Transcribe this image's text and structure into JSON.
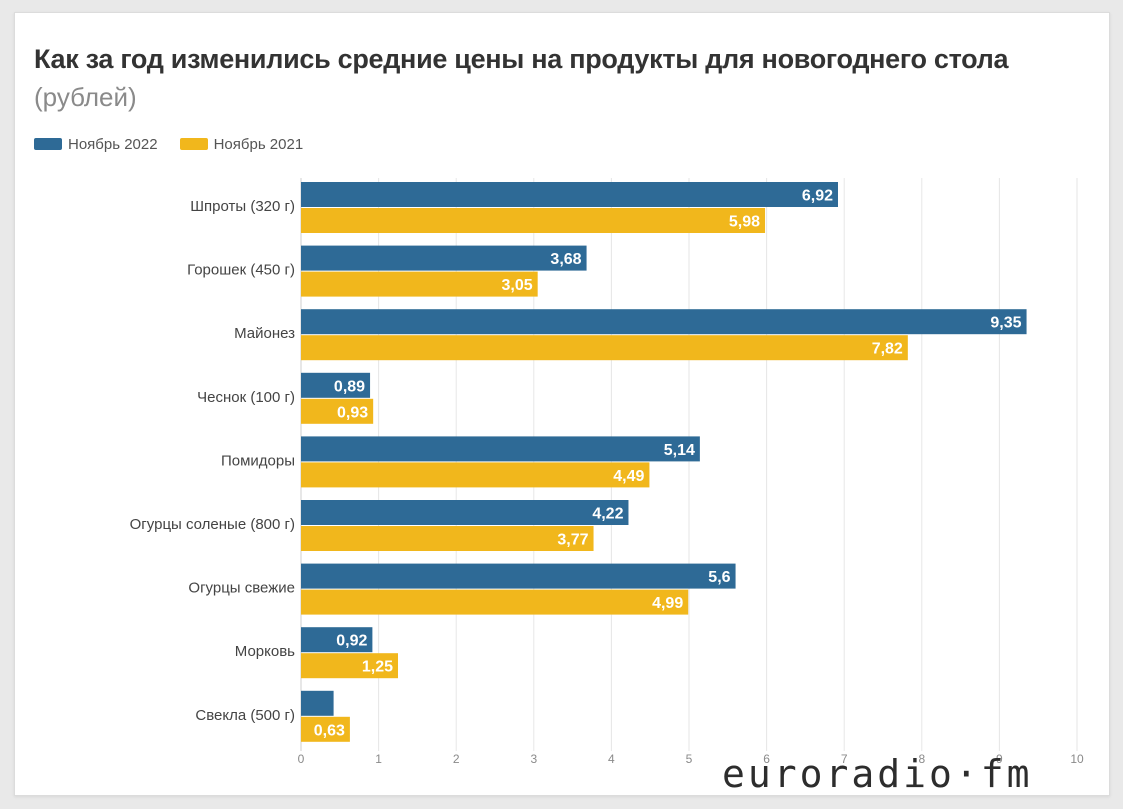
{
  "chart_data": {
    "type": "bar",
    "orientation": "horizontal",
    "title": "Как за год изменились средние цены на продукты для новогоднего стола",
    "subtitle": "(рублей)",
    "categories": [
      "Шпроты (320 г)",
      "Горошек (450 г)",
      "Майонез",
      "Чеснок (100 г)",
      "Помидоры",
      "Огурцы соленые (800 г)",
      "Огурцы свежие",
      "Морковь",
      "Свекла (500 г)"
    ],
    "series": [
      {
        "name": "Ноябрь 2022",
        "color": "#2e6a96",
        "values": [
          6.92,
          3.68,
          9.35,
          0.89,
          5.14,
          4.22,
          5.6,
          0.92,
          0.42
        ],
        "labels": [
          "6,92",
          "3,68",
          "9,35",
          "0,89",
          "5,14",
          "4,22",
          "5,6",
          "0,92",
          ""
        ]
      },
      {
        "name": "Ноябрь 2021",
        "color": "#f1b71c",
        "values": [
          5.98,
          3.05,
          7.82,
          0.93,
          4.49,
          3.77,
          4.99,
          1.25,
          0.63
        ],
        "labels": [
          "5,98",
          "3,05",
          "7,82",
          "0,93",
          "4,49",
          "3,77",
          "4,99",
          "1,25",
          "0,63"
        ]
      }
    ],
    "xlim": [
      0,
      10
    ],
    "x_ticks": [
      "0",
      "1",
      "2",
      "3",
      "4",
      "5",
      "6",
      "7",
      "8",
      "9",
      "10"
    ],
    "grid": true,
    "legend_position": "top-left"
  },
  "watermark": {
    "text": "euroradio·fm"
  }
}
